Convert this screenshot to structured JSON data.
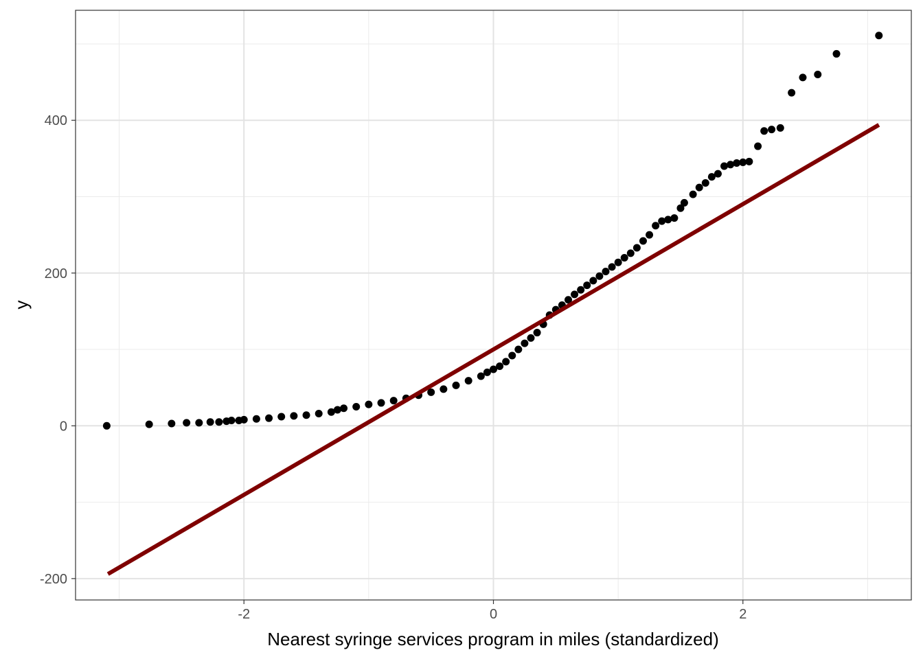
{
  "chart_data": {
    "type": "scatter",
    "title": "",
    "xlabel": "Nearest syringe services program in miles (standardized)",
    "ylabel": "y",
    "xlim": [
      -3.35,
      3.35
    ],
    "ylim": [
      -228,
      544
    ],
    "x_ticks": [
      -2,
      0,
      2
    ],
    "x_tick_labels": [
      "-2",
      "0",
      "2"
    ],
    "x_minor_ticks": [
      -3,
      -1,
      1,
      3
    ],
    "y_ticks": [
      -200,
      0,
      200,
      400
    ],
    "y_tick_labels": [
      "-200",
      "0",
      "200",
      "400"
    ],
    "y_minor_ticks": [
      -100,
      100,
      300,
      500
    ],
    "grid": true,
    "legend": "none",
    "series": [
      {
        "kind": "points",
        "color": "#000000",
        "x": [
          -3.1,
          -2.76,
          -2.58,
          -2.46,
          -2.36,
          -2.27,
          -2.2,
          -2.14,
          -2.1,
          -2.04,
          -2.0,
          -1.9,
          -1.8,
          -1.7,
          -1.6,
          -1.5,
          -1.4,
          -1.3,
          -1.25,
          -1.2,
          -1.1,
          -1.0,
          -0.9,
          -0.8,
          -0.7,
          -0.6,
          -0.5,
          -0.4,
          -0.3,
          -0.2,
          -0.1,
          -0.05,
          0.0,
          0.05,
          0.1,
          0.15,
          0.2,
          0.25,
          0.3,
          0.35,
          0.4,
          0.45,
          0.5,
          0.55,
          0.6,
          0.65,
          0.7,
          0.75,
          0.8,
          0.85,
          0.9,
          0.95,
          1.0,
          1.05,
          1.1,
          1.15,
          1.2,
          1.25,
          1.3,
          1.35,
          1.4,
          1.45,
          1.5,
          1.53,
          1.6,
          1.65,
          1.7,
          1.75,
          1.8,
          1.85,
          1.9,
          1.95,
          2.0,
          2.05,
          2.12,
          2.17,
          2.23,
          2.3,
          2.39,
          2.48,
          2.6,
          2.75,
          3.09
        ],
        "y": [
          0,
          2,
          3,
          4,
          4,
          5,
          5,
          6,
          7,
          7,
          8,
          9,
          10,
          12,
          13,
          14,
          16,
          18,
          21,
          23,
          25,
          28,
          30,
          33,
          36,
          40,
          44,
          48,
          53,
          59,
          65,
          70,
          74,
          78,
          84,
          92,
          100,
          108,
          115,
          122,
          133,
          145,
          152,
          158,
          165,
          172,
          178,
          184,
          190,
          196,
          202,
          208,
          214,
          220,
          226,
          233,
          242,
          250,
          262,
          268,
          270,
          272,
          285,
          292,
          303,
          312,
          318,
          326,
          330,
          340,
          342,
          344,
          345,
          346,
          366,
          386,
          388,
          390,
          436,
          456,
          460,
          487,
          511
        ]
      },
      {
        "kind": "line",
        "color": "#7f0000",
        "x": [
          -3.09,
          3.09
        ],
        "y": [
          -194,
          394
        ]
      }
    ]
  }
}
